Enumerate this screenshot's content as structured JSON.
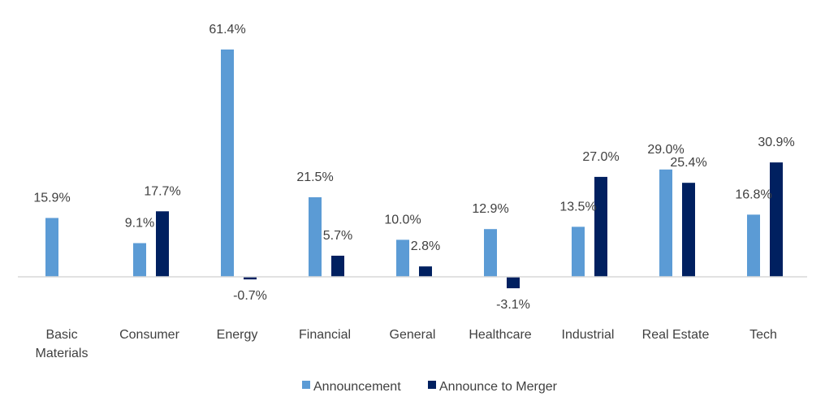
{
  "chart_data": {
    "type": "bar",
    "categories": [
      [
        "Basic",
        "Materials"
      ],
      [
        "Consumer"
      ],
      [
        "Energy"
      ],
      [
        "Financial"
      ],
      [
        "General"
      ],
      [
        "Healthcare"
      ],
      [
        "Industrial"
      ],
      [
        "Real Estate"
      ],
      [
        "Tech"
      ]
    ],
    "series": [
      {
        "name": "Announcement",
        "color": "#5B9BD5",
        "values": [
          15.9,
          9.1,
          61.4,
          21.5,
          10.0,
          12.9,
          13.5,
          29.0,
          16.8
        ],
        "labels": [
          "15.9%",
          "9.1%",
          "61.4%",
          "21.5%",
          "10.0%",
          "12.9%",
          "13.5%",
          "29.0%",
          "16.8%"
        ]
      },
      {
        "name": "Announce to Merger",
        "color": "#002060",
        "values": [
          null,
          17.7,
          -0.7,
          5.7,
          2.8,
          -3.1,
          27.0,
          25.4,
          30.9
        ],
        "labels": [
          null,
          "17.7%",
          "-0.7%",
          "5.7%",
          "2.8%",
          "-3.1%",
          "27.0%",
          "25.4%",
          "30.9%"
        ]
      }
    ],
    "ylim": [
      -5,
      65
    ],
    "grid": false,
    "legend_position": "bottom"
  }
}
